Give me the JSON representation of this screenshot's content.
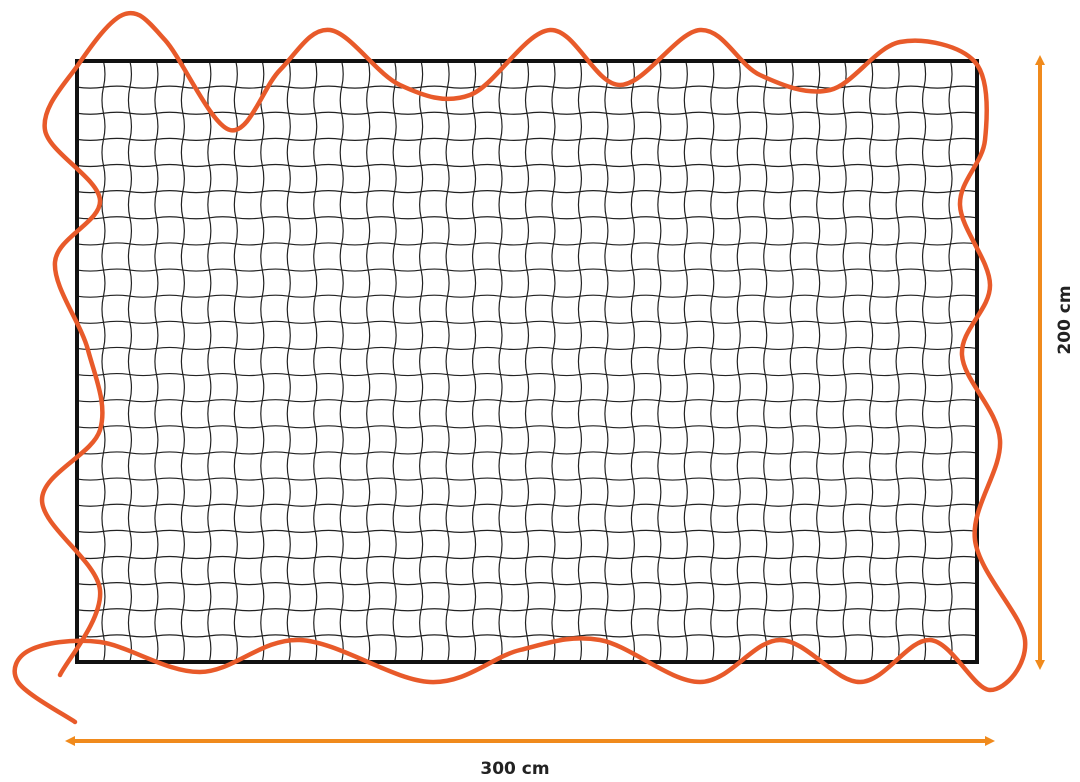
{
  "dimensions": {
    "width": {
      "label": "300 cm"
    },
    "height": {
      "label": "200 cm"
    }
  }
}
